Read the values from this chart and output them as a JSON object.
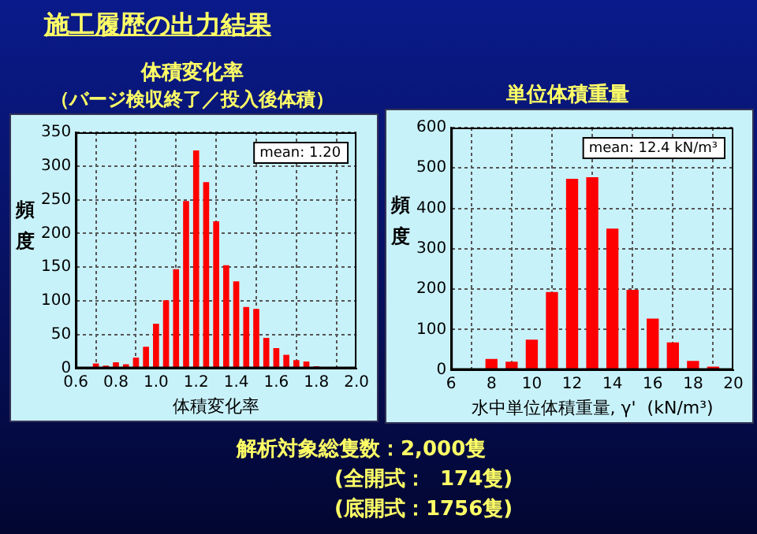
{
  "chart_data": [
    {
      "type": "other",
      "title": "施工履歴の出力結果"
    },
    {
      "type": "bar",
      "title": "体積変化率",
      "subtitle": "（バージ検収終了／投入後体積）",
      "xlabel": "体積変化率",
      "ylabel": "頻度",
      "x": [
        0.7,
        0.75,
        0.8,
        0.85,
        0.9,
        0.95,
        1.0,
        1.05,
        1.1,
        1.15,
        1.2,
        1.25,
        1.3,
        1.35,
        1.4,
        1.45,
        1.5,
        1.55,
        1.6,
        1.65,
        1.7,
        1.75,
        1.8
      ],
      "values": [
        7,
        4,
        9,
        6,
        16,
        32,
        66,
        101,
        147,
        248,
        323,
        276,
        218,
        153,
        129,
        91,
        88,
        45,
        30,
        20,
        12,
        10,
        3
      ],
      "color": "#ff0000",
      "xlim": [
        0.6,
        2.0
      ],
      "xticks": [
        0.6,
        0.8,
        {
          "value": 1.0,
          "label": "1.0"
        },
        1.2,
        1.4,
        1.6,
        1.8,
        {
          "value": 2.0,
          "label": "2.0"
        }
      ],
      "ylim": [
        0,
        350
      ],
      "yticks": [
        0,
        50,
        100,
        150,
        200,
        250,
        300,
        350
      ],
      "grid": true,
      "annotations": [
        "mean: 1.20"
      ]
    },
    {
      "type": "bar",
      "title": "単位体積重量",
      "xlabel": "水中単位体積重量, γ'  (kN/m³)",
      "ylabel": "頻度",
      "x": [
        7,
        8,
        9,
        10,
        11,
        12,
        13,
        14,
        15,
        16,
        17,
        18,
        19
      ],
      "values": [
        3,
        27,
        20,
        75,
        193,
        473,
        477,
        350,
        198,
        127,
        68,
        22,
        8
      ],
      "color": "#ff0000",
      "xlim": [
        6,
        20
      ],
      "xticks": [
        6,
        8,
        10,
        12,
        14,
        16,
        18,
        20
      ],
      "ylim": [
        0,
        600
      ],
      "yticks": [
        0,
        100,
        200,
        300,
        400,
        500,
        600
      ],
      "grid": true,
      "annotations": [
        "mean: 12.4 kN/m³"
      ]
    },
    {
      "type": "other",
      "annotations": [
        "解析対象総隻数：2,000隻",
        "(全開式：  174隻)",
        "(底開式：1756隻)"
      ]
    }
  ]
}
